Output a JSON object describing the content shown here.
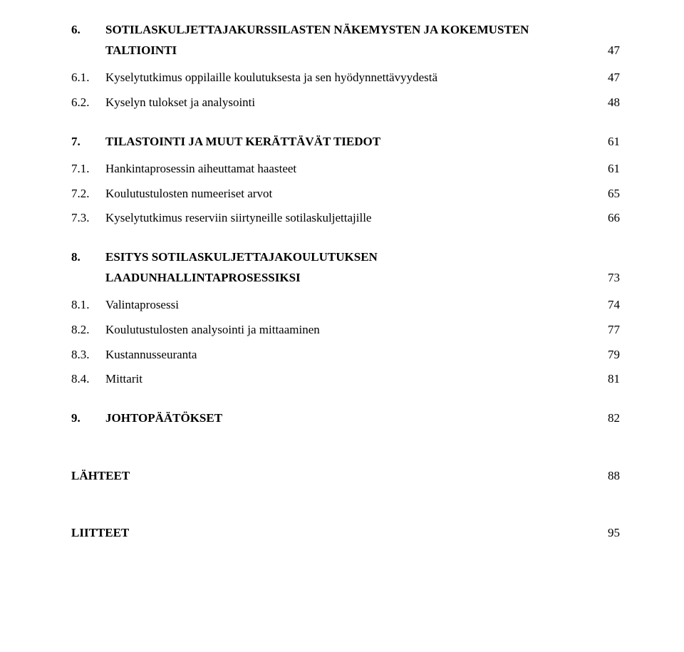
{
  "title_fontsize": 17,
  "text_color": "#000000",
  "background_color": "#ffffff",
  "toc": {
    "s6": {
      "num": "6.",
      "title_line1": "SOTILASKULJETTAJAKURSSILASTEN NÄKEMYSTEN JA KOKEMUSTEN",
      "title_line2": "TALTIOINTI",
      "page": "47",
      "items": [
        {
          "num": "6.1.",
          "text": "Kyselytutkimus oppilaille koulutuksesta ja sen hyödynnettävyydestä",
          "page": "47"
        },
        {
          "num": "6.2.",
          "text": "Kyselyn tulokset ja analysointi",
          "page": "48"
        }
      ]
    },
    "s7": {
      "num": "7.",
      "title": "TILASTOINTI JA MUUT KERÄTTÄVÄT TIEDOT",
      "page": "61",
      "items": [
        {
          "num": "7.1.",
          "text": "Hankintaprosessin aiheuttamat haasteet",
          "page": "61"
        },
        {
          "num": "7.2.",
          "text": "Koulutustulosten numeeriset arvot",
          "page": "65"
        },
        {
          "num": "7.3.",
          "text": "Kyselytutkimus reserviin siirtyneille sotilaskuljettajille",
          "page": "66"
        }
      ]
    },
    "s8": {
      "num": "8.",
      "title_line1": "ESITYS SOTILASKULJETTAJAKOULUTUKSEN",
      "title_line2": "LAADUNHALLINTAPROSESSIKSI",
      "page": "73",
      "items": [
        {
          "num": "8.1.",
          "text": "Valintaprosessi",
          "page": "74"
        },
        {
          "num": "8.2.",
          "text": "Koulutustulosten analysointi ja mittaaminen",
          "page": "77"
        },
        {
          "num": "8.3.",
          "text": "Kustannusseuranta",
          "page": "79"
        },
        {
          "num": "8.4.",
          "text": "Mittarit",
          "page": "81"
        }
      ]
    },
    "s9": {
      "num": "9.",
      "title": "JOHTOPÄÄTÖKSET",
      "page": "82"
    },
    "lahteet": {
      "title": "LÄHTEET",
      "page": "88"
    },
    "liitteet": {
      "title": "LIITTEET",
      "page": "95"
    }
  }
}
